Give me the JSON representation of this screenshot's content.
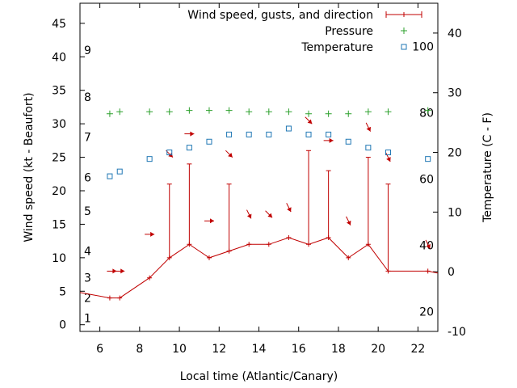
{
  "chart_data": {
    "type": "line",
    "xlabel": "Local time (Atlantic/Canary)",
    "ylabel_left": "Wind speed (kt - Beaufort)",
    "ylabel_right": "Temperature (C - F)",
    "xlim": [
      5,
      23
    ],
    "ylim_left": [
      -1,
      48
    ],
    "ylim_right": [
      -10,
      45
    ],
    "x_ticks": [
      6,
      8,
      10,
      12,
      14,
      16,
      18,
      20,
      22
    ],
    "y_left_ticks": [
      0,
      5,
      10,
      15,
      20,
      25,
      30,
      35,
      40,
      45
    ],
    "y_right_ticks": [
      -10,
      0,
      10,
      20,
      30,
      40
    ],
    "beaufort_labels": [
      {
        "label": "1",
        "kt": 1
      },
      {
        "label": "2",
        "kt": 4
      },
      {
        "label": "3",
        "kt": 7
      },
      {
        "label": "4",
        "kt": 11
      },
      {
        "label": "5",
        "kt": 17
      },
      {
        "label": "6",
        "kt": 22
      },
      {
        "label": "7",
        "kt": 28
      },
      {
        "label": "8",
        "kt": 34
      },
      {
        "label": "9",
        "kt": 41
      }
    ],
    "fahrenheit_labels": [
      {
        "label": "20",
        "c": -6.67
      },
      {
        "label": "40",
        "c": 4.44
      },
      {
        "label": "60",
        "c": 15.56
      },
      {
        "label": "80",
        "c": 26.67
      },
      {
        "label": "100",
        "c": 37.78
      }
    ],
    "legend": [
      {
        "name": "Wind speed, gusts, and direction",
        "color": "#c00000",
        "symbol": "line-plus"
      },
      {
        "name": "Pressure",
        "color": "#2ca02c",
        "symbol": "plus"
      },
      {
        "name": "Temperature",
        "color": "#1f77b4",
        "symbol": "square"
      }
    ],
    "series": [
      {
        "name": "Wind speed, gusts, and direction",
        "x": [
          5.0,
          6.5,
          7.0,
          8.5,
          9.5,
          10.5,
          11.5,
          12.5,
          13.5,
          14.5,
          15.5,
          16.5,
          17.5,
          18.5,
          19.5,
          20.5,
          22.5,
          23.0
        ],
        "speed": [
          4.8,
          4.0,
          4.0,
          7.0,
          10.0,
          12.0,
          10.0,
          11.0,
          12.0,
          12.0,
          13.0,
          12.0,
          13.0,
          10.0,
          12.0,
          8.0,
          8.0,
          7.7
        ],
        "gust": [
          null,
          null,
          null,
          null,
          21,
          24,
          null,
          21,
          null,
          null,
          null,
          26,
          23,
          null,
          25,
          21,
          null,
          null
        ]
      },
      {
        "name": "Wind direction arrows",
        "points": [
          {
            "x": 6.6,
            "y": 8,
            "dir": "E"
          },
          {
            "x": 7.0,
            "y": 8,
            "dir": "E"
          },
          {
            "x": 8.5,
            "y": 13.5,
            "dir": "E"
          },
          {
            "x": 9.5,
            "y": 25.5,
            "dir": "SE"
          },
          {
            "x": 10.5,
            "y": 28.5,
            "dir": "E"
          },
          {
            "x": 11.5,
            "y": 15.5,
            "dir": "E"
          },
          {
            "x": 12.5,
            "y": 25.5,
            "dir": "SE"
          },
          {
            "x": 13.5,
            "y": 16.5,
            "dir": "S"
          },
          {
            "x": 14.5,
            "y": 16.5,
            "dir": "SE"
          },
          {
            "x": 15.5,
            "y": 17.5,
            "dir": "S"
          },
          {
            "x": 16.5,
            "y": 30.5,
            "dir": "SE"
          },
          {
            "x": 17.5,
            "y": 27.5,
            "dir": "E"
          },
          {
            "x": 18.5,
            "y": 15.5,
            "dir": "S"
          },
          {
            "x": 19.5,
            "y": 29.5,
            "dir": "S"
          },
          {
            "x": 20.5,
            "y": 25.0,
            "dir": "S"
          },
          {
            "x": 22.5,
            "y": 12.0,
            "dir": "S"
          }
        ]
      },
      {
        "name": "Pressure",
        "x": [
          6.5,
          7.0,
          8.5,
          9.5,
          10.5,
          11.5,
          12.5,
          13.5,
          14.5,
          15.5,
          16.5,
          17.5,
          18.5,
          19.5,
          20.5,
          22.5
        ],
        "values": [
          31.5,
          31.8,
          31.8,
          31.8,
          32.0,
          32.0,
          32.0,
          31.8,
          31.8,
          31.8,
          31.5,
          31.5,
          31.5,
          31.8,
          31.8,
          32.0
        ]
      },
      {
        "name": "Temperature",
        "x": [
          6.5,
          7.0,
          8.5,
          9.5,
          10.5,
          11.5,
          12.5,
          13.5,
          14.5,
          15.5,
          16.5,
          17.5,
          18.5,
          19.5,
          20.5,
          22.5
        ],
        "values": [
          16.0,
          16.8,
          18.9,
          20.0,
          20.8,
          21.8,
          23.0,
          23.0,
          23.0,
          24.0,
          23.0,
          23.0,
          21.8,
          20.8,
          20.0,
          18.9
        ]
      }
    ]
  }
}
